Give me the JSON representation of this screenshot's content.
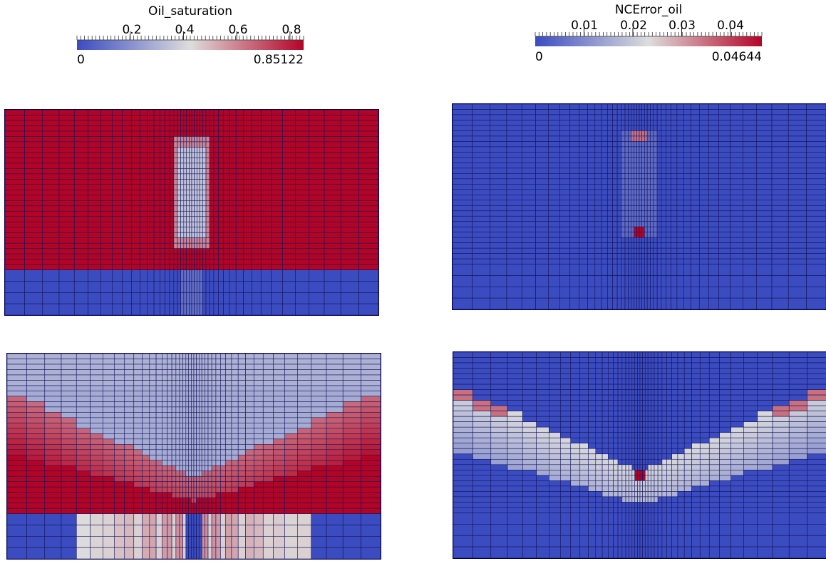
{
  "colors": {
    "grid": "#14145a",
    "cool": "#3b4cc0",
    "mid": "#dddddd",
    "warm": "#b40426"
  },
  "colorbars": [
    {
      "title": "Oil_saturation",
      "min_label": "0",
      "max_label": "0.85122",
      "ticks": [
        "0.2",
        "0.4",
        "0.6",
        "0.8"
      ],
      "range": [
        0,
        0.85122
      ],
      "tick_values": [
        0.2,
        0.4,
        0.6,
        0.8
      ]
    },
    {
      "title": "NCError_oil",
      "min_label": "0",
      "max_label": "0.04644",
      "ticks": [
        "0.01",
        "0.02",
        "0.03",
        "0.04"
      ],
      "range": [
        0,
        0.04644
      ],
      "tick_values": [
        0.01,
        0.02,
        0.03,
        0.04
      ]
    }
  ],
  "chart_data": [
    {
      "type": "heatmap",
      "title": "Oil_saturation",
      "field": "Oil_saturation",
      "scale": [
        0,
        0.85122
      ],
      "pattern": "channel",
      "levels": {
        "background": 0.85122,
        "lower_layer": 0.0,
        "channel": 0.35,
        "channel_edge": 0.6
      }
    },
    {
      "type": "heatmap",
      "title": "NCError_oil",
      "field": "NCError_oil",
      "scale": [
        0,
        0.04644
      ],
      "pattern": "channel-error",
      "levels": {
        "background": 0.0,
        "channel": 0.005,
        "channel_top": 0.035,
        "peak": 0.04644
      }
    },
    {
      "type": "heatmap",
      "title": "Oil_saturation",
      "field": "Oil_saturation",
      "scale": [
        0,
        0.85122
      ],
      "pattern": "v-front",
      "levels": {
        "top": 0.3,
        "inside_v": 0.28,
        "front": 0.65,
        "below": 0.85122,
        "lower_layer": 0.0,
        "lower_layer_mid": 0.6
      }
    },
    {
      "type": "heatmap",
      "title": "NCError_oil",
      "field": "NCError_oil",
      "scale": [
        0,
        0.04644
      ],
      "pattern": "v-error",
      "levels": {
        "background": 0.0,
        "front": 0.022,
        "front_edge": 0.035,
        "peak": 0.04644
      }
    }
  ]
}
